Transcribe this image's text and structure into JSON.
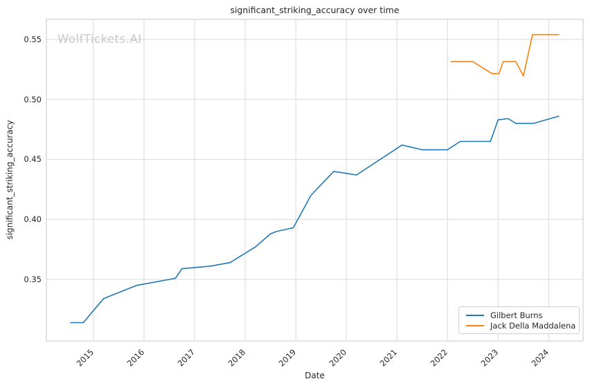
{
  "chart_data": {
    "type": "line",
    "title": "significant_striking_accuracy over time",
    "xlabel": "Date",
    "ylabel": "significant_striking_accuracy",
    "watermark": "WolfTickets.AI",
    "grid": true,
    "legend_position": "lower right",
    "xlim": [
      2014.07,
      2024.68
    ],
    "ylim": [
      0.2987,
      0.5667
    ],
    "x_ticks": [
      {
        "v": 2015,
        "label": "2015"
      },
      {
        "v": 2016,
        "label": "2016"
      },
      {
        "v": 2017,
        "label": "2017"
      },
      {
        "v": 2018,
        "label": "2018"
      },
      {
        "v": 2019,
        "label": "2019"
      },
      {
        "v": 2020,
        "label": "2020"
      },
      {
        "v": 2021,
        "label": "2021"
      },
      {
        "v": 2022,
        "label": "2022"
      },
      {
        "v": 2023,
        "label": "2023"
      },
      {
        "v": 2024,
        "label": "2024"
      }
    ],
    "y_ticks": [
      {
        "v": 0.35,
        "label": "0.35"
      },
      {
        "v": 0.4,
        "label": "0.40"
      },
      {
        "v": 0.45,
        "label": "0.45"
      },
      {
        "v": 0.5,
        "label": "0.50"
      },
      {
        "v": 0.55,
        "label": "0.55"
      }
    ],
    "series": [
      {
        "name": "Gilbert Burns",
        "color": "#1f77b4",
        "x": [
          2014.55,
          2014.8,
          2015.2,
          2015.85,
          2016.5,
          2016.62,
          2016.75,
          2017.3,
          2017.7,
          2018.2,
          2018.5,
          2018.62,
          2018.95,
          2019.3,
          2019.75,
          2020.2,
          2021.1,
          2021.5,
          2022.0,
          2022.25,
          2022.85,
          2023.0,
          2023.2,
          2023.35,
          2023.7,
          2024.2
        ],
        "y": [
          0.314,
          0.314,
          0.334,
          0.345,
          0.35,
          0.351,
          0.359,
          0.361,
          0.364,
          0.377,
          0.388,
          0.39,
          0.393,
          0.42,
          0.44,
          0.437,
          0.462,
          0.458,
          0.458,
          0.465,
          0.465,
          0.483,
          0.484,
          0.48,
          0.48,
          0.486
        ]
      },
      {
        "name": "Jack Della Maddalena",
        "color": "#ff7f0e",
        "x": [
          2022.07,
          2022.5,
          2022.88,
          2023.02,
          2023.1,
          2023.35,
          2023.5,
          2023.68,
          2024.2
        ],
        "y": [
          0.5315,
          0.5315,
          0.5215,
          0.5215,
          0.5315,
          0.5315,
          0.5195,
          0.554,
          0.554
        ]
      }
    ]
  }
}
